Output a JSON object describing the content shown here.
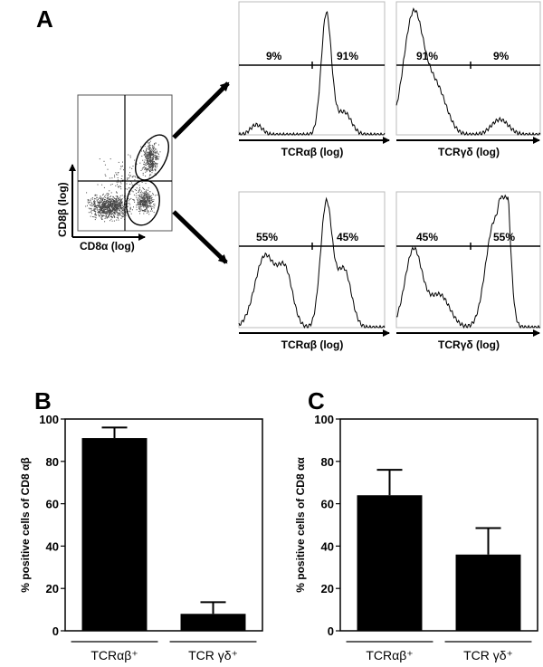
{
  "panels": {
    "a": "A",
    "b": "B",
    "c": "C"
  },
  "scatter": {
    "ylabel": "CD8β (log)",
    "xlabel": "CD8α (log)"
  },
  "histograms": [
    {
      "xlabel": "TCRαβ (log)",
      "left_pct": "9%",
      "right_pct": "91%"
    },
    {
      "xlabel": "TCRγδ (log)",
      "left_pct": "91%",
      "right_pct": "9%"
    },
    {
      "xlabel": "TCRαβ (log)",
      "left_pct": "55%",
      "right_pct": "45%"
    },
    {
      "xlabel": "TCRγδ (log)",
      "left_pct": "45%",
      "right_pct": "55%"
    }
  ],
  "chart_data": [
    {
      "type": "bar",
      "panel": "B",
      "categories": [
        "TCRαβ⁺",
        "TCR γδ⁺"
      ],
      "values": [
        91,
        8
      ],
      "errors": [
        5,
        5.5
      ],
      "ylabel": "% positive cells of CD8 αβ",
      "ylim": [
        0,
        100
      ],
      "yticks": [
        "0",
        "20",
        "40",
        "60",
        "80",
        "100"
      ]
    },
    {
      "type": "bar",
      "panel": "C",
      "categories": [
        "TCRαβ⁺",
        "TCR γδ⁺"
      ],
      "values": [
        64,
        36
      ],
      "errors": [
        12,
        12.5
      ],
      "ylabel": "% positive cells of CD8 αα",
      "ylim": [
        0,
        100
      ],
      "yticks": [
        "0",
        "20",
        "40",
        "60",
        "80",
        "100"
      ]
    }
  ]
}
